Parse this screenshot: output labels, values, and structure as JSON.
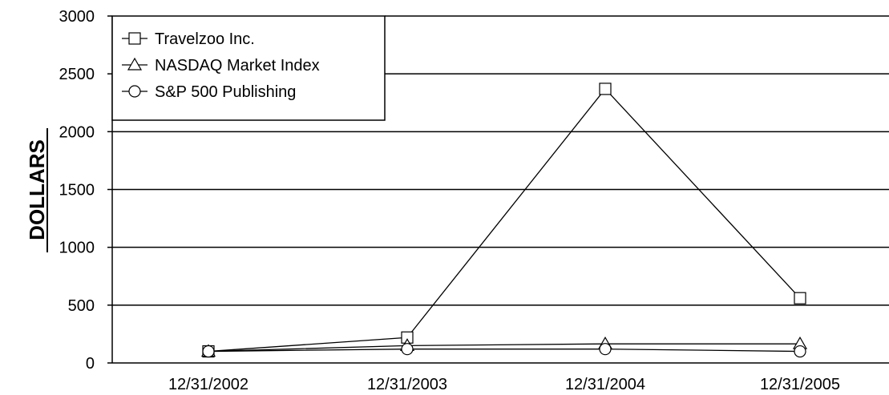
{
  "chart_data": {
    "type": "line",
    "title": "",
    "xlabel": "",
    "ylabel": "DOLLARS",
    "categories": [
      "12/31/2002",
      "12/31/2003",
      "12/31/2004",
      "12/31/2005"
    ],
    "ylim": [
      0,
      3000
    ],
    "yticks": [
      0,
      500,
      1000,
      1500,
      2000,
      2500,
      3000
    ],
    "grid": "horizontal",
    "legend_position": "top-left",
    "series": [
      {
        "name": "Travelzoo Inc.",
        "marker": "square",
        "values": [
          100,
          220,
          2370,
          560
        ]
      },
      {
        "name": "NASDAQ Market Index",
        "marker": "triangle",
        "values": [
          100,
          150,
          165,
          165
        ]
      },
      {
        "name": "S&P 500 Publishing",
        "marker": "circle",
        "values": [
          100,
          120,
          120,
          100
        ]
      }
    ]
  }
}
